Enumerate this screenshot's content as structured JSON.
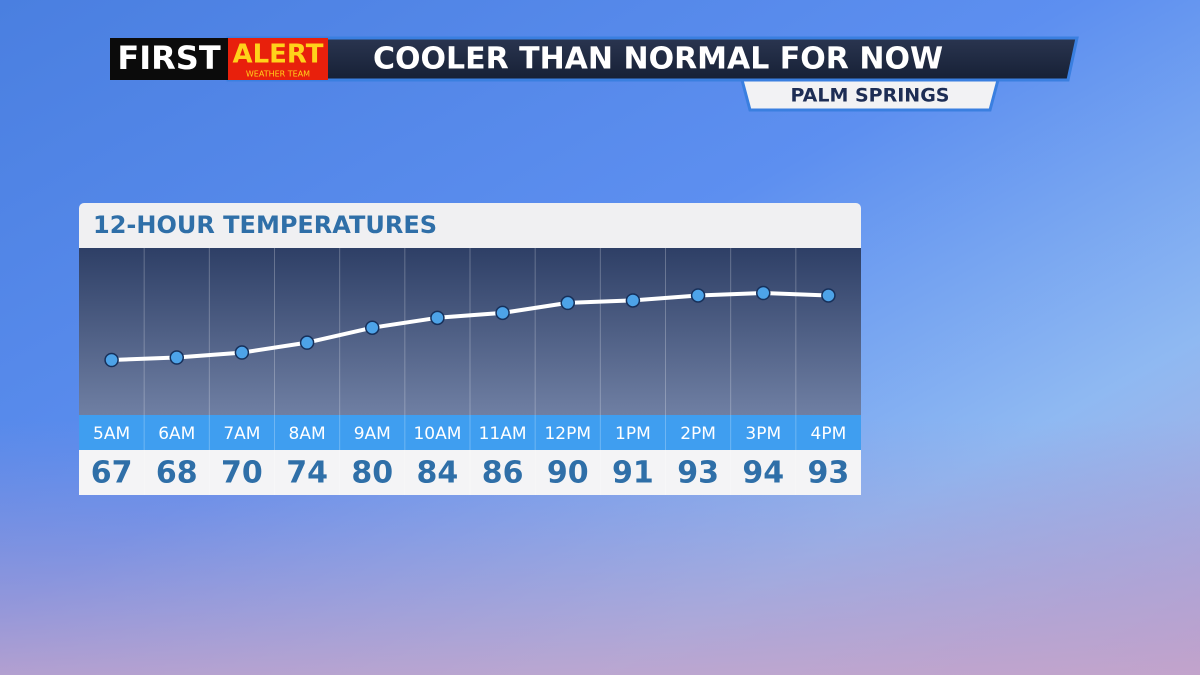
{
  "header": {
    "brand_first": "FIRST",
    "brand_alert": "ALERT",
    "brand_team": "WEATHER TEAM",
    "title": "COOLER THAN NORMAL FOR NOW",
    "location": "PALM SPRINGS"
  },
  "chart_data": {
    "type": "line",
    "title": "12-HOUR TEMPERATURES",
    "categories": [
      "5AM",
      "6AM",
      "7AM",
      "8AM",
      "9AM",
      "10AM",
      "11AM",
      "12PM",
      "1PM",
      "2PM",
      "3PM",
      "4PM"
    ],
    "values": [
      67,
      68,
      70,
      74,
      80,
      84,
      86,
      90,
      91,
      93,
      94,
      93
    ],
    "color": "#ffffff",
    "marker_color": "#4da3e8"
  }
}
